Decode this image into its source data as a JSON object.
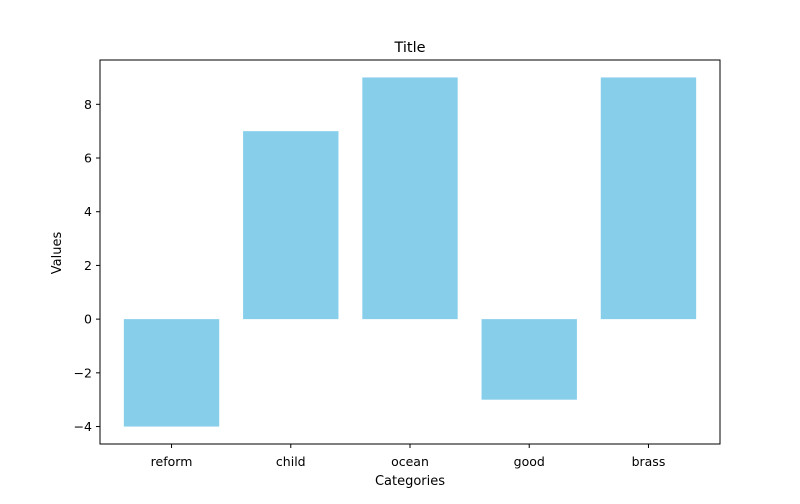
{
  "chart_data": {
    "type": "bar",
    "title": "Title",
    "xlabel": "Categories",
    "ylabel": "Values",
    "categories": [
      "reform",
      "child",
      "ocean",
      "good",
      "brass"
    ],
    "values": [
      -4,
      7,
      9,
      -3,
      9
    ],
    "ylim": [
      -4.65,
      9.65
    ],
    "yticks": [
      -4,
      -2,
      0,
      2,
      4,
      6,
      8
    ],
    "bar_color": "#87ceeb",
    "grid": false,
    "legend": "none"
  }
}
